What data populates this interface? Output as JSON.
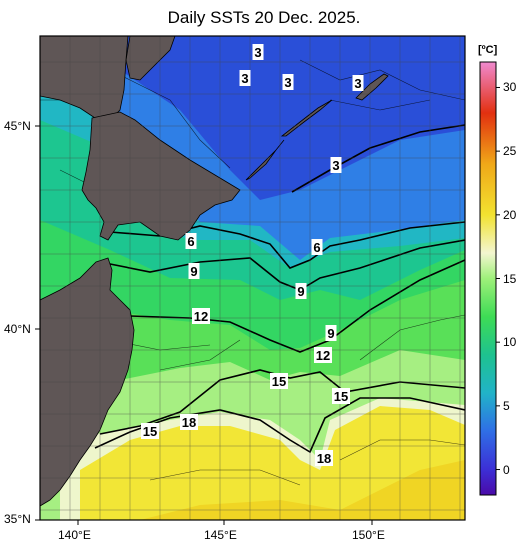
{
  "title": "Daily SSTs 20 Dec. 2025.",
  "colorbar": {
    "unit": "[ºC]",
    "ticks": [
      "30",
      "25",
      "20",
      "15",
      "10",
      "5",
      "0"
    ],
    "min": -2,
    "max": 32,
    "gradient": [
      {
        "v": -2,
        "c": "#4a0aa8"
      },
      {
        "v": 0,
        "c": "#3c2fd6"
      },
      {
        "v": 3,
        "c": "#2f6ee6"
      },
      {
        "v": 6,
        "c": "#21b3c8"
      },
      {
        "v": 9,
        "c": "#1ec28f"
      },
      {
        "v": 12,
        "c": "#3edc55"
      },
      {
        "v": 15,
        "c": "#9ef07a"
      },
      {
        "v": 17,
        "c": "#f3f6d0"
      },
      {
        "v": 20,
        "c": "#f2e230"
      },
      {
        "v": 24,
        "c": "#f0a818"
      },
      {
        "v": 28,
        "c": "#e23010"
      },
      {
        "v": 32,
        "c": "#f08ad0"
      }
    ]
  },
  "axes": {
    "lat_labels": [
      "45°N",
      "40°N",
      "35°N"
    ],
    "lon_labels": [
      "140°E",
      "145°E",
      "150°E"
    ]
  },
  "contour_labels": [
    {
      "text": "3",
      "name": "contour-label-3-a"
    },
    {
      "text": "3",
      "name": "contour-label-3-b"
    },
    {
      "text": "3",
      "name": "contour-label-3-c"
    },
    {
      "text": "3",
      "name": "contour-label-3-d"
    },
    {
      "text": "3",
      "name": "contour-label-3-e"
    },
    {
      "text": "6",
      "name": "contour-label-6-a"
    },
    {
      "text": "6",
      "name": "contour-label-6-b"
    },
    {
      "text": "9",
      "name": "contour-label-9-a"
    },
    {
      "text": "9",
      "name": "contour-label-9-b"
    },
    {
      "text": "9",
      "name": "contour-label-9-c"
    },
    {
      "text": "12",
      "name": "contour-label-12-a"
    },
    {
      "text": "12",
      "name": "contour-label-12-b"
    },
    {
      "text": "15",
      "name": "contour-label-15-a"
    },
    {
      "text": "15",
      "name": "contour-label-15-b"
    },
    {
      "text": "15",
      "name": "contour-label-15-c"
    },
    {
      "text": "18",
      "name": "contour-label-18-a"
    },
    {
      "text": "18",
      "name": "contour-label-18-b"
    }
  ],
  "colors": {
    "land": "#5f5656",
    "frame": "#000000",
    "grid": "#555555"
  }
}
